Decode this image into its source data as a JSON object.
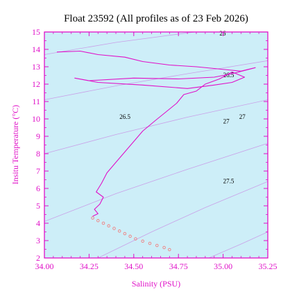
{
  "chart_data": {
    "type": "line",
    "title": "Float 23592  (All profiles as of 23 Feb 2026)",
    "xlabel": "Salinity (PSU)",
    "ylabel": "Insitu Temperature (°C)",
    "xlim": [
      34.0,
      35.25
    ],
    "ylim": [
      2,
      15
    ],
    "xticks": [
      "34.00",
      "34.25",
      "34.50",
      "34.75",
      "35.00",
      "35.25"
    ],
    "yticks": [
      "2",
      "3",
      "4",
      "5",
      "6",
      "7",
      "8",
      "9",
      "10",
      "11",
      "12",
      "13",
      "14",
      "15"
    ],
    "grid": false,
    "colors": {
      "plot_background": "#cdeef8",
      "profile_line": "#e010c8",
      "deep_points": "#f08080",
      "isopycnal": "#c9a0e8",
      "axis": "#e010c8"
    },
    "isopycnal_labels": [
      "26",
      "26.5",
      "26.5",
      "27",
      "27",
      "27.5"
    ],
    "series": [
      {
        "style": "line",
        "points": [
          [
            34.07,
            13.85
          ],
          [
            34.2,
            13.9
          ],
          [
            34.3,
            13.7
          ],
          [
            34.45,
            13.55
          ],
          [
            34.55,
            13.3
          ],
          [
            34.7,
            13.1
          ],
          [
            34.85,
            13.0
          ],
          [
            34.95,
            12.9
          ],
          [
            35.1,
            12.75
          ],
          [
            35.18,
            12.95
          ],
          [
            35.05,
            12.6
          ],
          [
            34.95,
            12.4
          ],
          [
            34.75,
            12.3
          ],
          [
            34.5,
            12.35
          ],
          [
            34.25,
            12.2
          ],
          [
            34.17,
            12.35
          ],
          [
            34.3,
            12.1
          ],
          [
            34.55,
            11.95
          ],
          [
            34.8,
            11.75
          ],
          [
            34.95,
            11.95
          ],
          [
            35.05,
            12.1
          ],
          [
            35.12,
            12.4
          ],
          [
            35.05,
            12.7
          ],
          [
            34.98,
            12.3
          ],
          [
            34.9,
            12.0
          ],
          [
            34.85,
            11.6
          ],
          [
            34.78,
            11.4
          ],
          [
            34.74,
            10.9
          ],
          [
            34.68,
            10.4
          ],
          [
            34.62,
            9.9
          ],
          [
            34.55,
            9.3
          ],
          [
            34.5,
            8.7
          ],
          [
            34.45,
            8.1
          ],
          [
            34.4,
            7.5
          ],
          [
            34.35,
            6.9
          ],
          [
            34.32,
            6.3
          ],
          [
            34.29,
            5.8
          ],
          [
            34.33,
            5.5
          ],
          [
            34.31,
            5.1
          ],
          [
            34.28,
            4.8
          ],
          [
            34.3,
            4.55
          ],
          [
            34.27,
            4.4
          ]
        ]
      },
      {
        "style": "markers",
        "points": [
          [
            34.27,
            4.3
          ],
          [
            34.3,
            4.15
          ],
          [
            34.33,
            4.0
          ],
          [
            34.36,
            3.85
          ],
          [
            34.39,
            3.7
          ],
          [
            34.42,
            3.55
          ],
          [
            34.45,
            3.4
          ],
          [
            34.48,
            3.25
          ],
          [
            34.51,
            3.1
          ],
          [
            34.55,
            2.97
          ],
          [
            34.59,
            2.84
          ],
          [
            34.63,
            2.72
          ],
          [
            34.67,
            2.6
          ],
          [
            34.7,
            2.48
          ]
        ]
      }
    ]
  }
}
